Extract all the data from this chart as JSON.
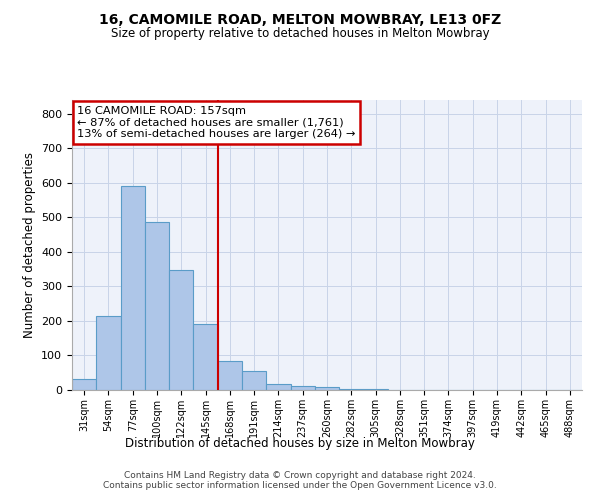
{
  "title1": "16, CAMOMILE ROAD, MELTON MOWBRAY, LE13 0FZ",
  "title2": "Size of property relative to detached houses in Melton Mowbray",
  "xlabel": "Distribution of detached houses by size in Melton Mowbray",
  "ylabel": "Number of detached properties",
  "categories": [
    "31sqm",
    "54sqm",
    "77sqm",
    "100sqm",
    "122sqm",
    "145sqm",
    "168sqm",
    "191sqm",
    "214sqm",
    "237sqm",
    "260sqm",
    "282sqm",
    "305sqm",
    "328sqm",
    "351sqm",
    "374sqm",
    "397sqm",
    "419sqm",
    "442sqm",
    "465sqm",
    "488sqm"
  ],
  "values": [
    33,
    215,
    590,
    488,
    348,
    190,
    84,
    54,
    17,
    12,
    8,
    3,
    2,
    1,
    1,
    0,
    0,
    0,
    0,
    0,
    0
  ],
  "bar_color": "#aec6e8",
  "bar_edge_color": "#5a9cc8",
  "vline_color": "#cc0000",
  "annotation_line1": "16 CAMOMILE ROAD: 157sqm",
  "annotation_line2": "← 87% of detached houses are smaller (1,761)",
  "annotation_line3": "13% of semi-detached houses are larger (264) →",
  "annotation_box_color": "#cc0000",
  "ylim": [
    0,
    840
  ],
  "yticks": [
    0,
    100,
    200,
    300,
    400,
    500,
    600,
    700,
    800
  ],
  "footer1": "Contains HM Land Registry data © Crown copyright and database right 2024.",
  "footer2": "Contains public sector information licensed under the Open Government Licence v3.0.",
  "bg_color": "#eef2fa",
  "grid_color": "#c8d4e8"
}
